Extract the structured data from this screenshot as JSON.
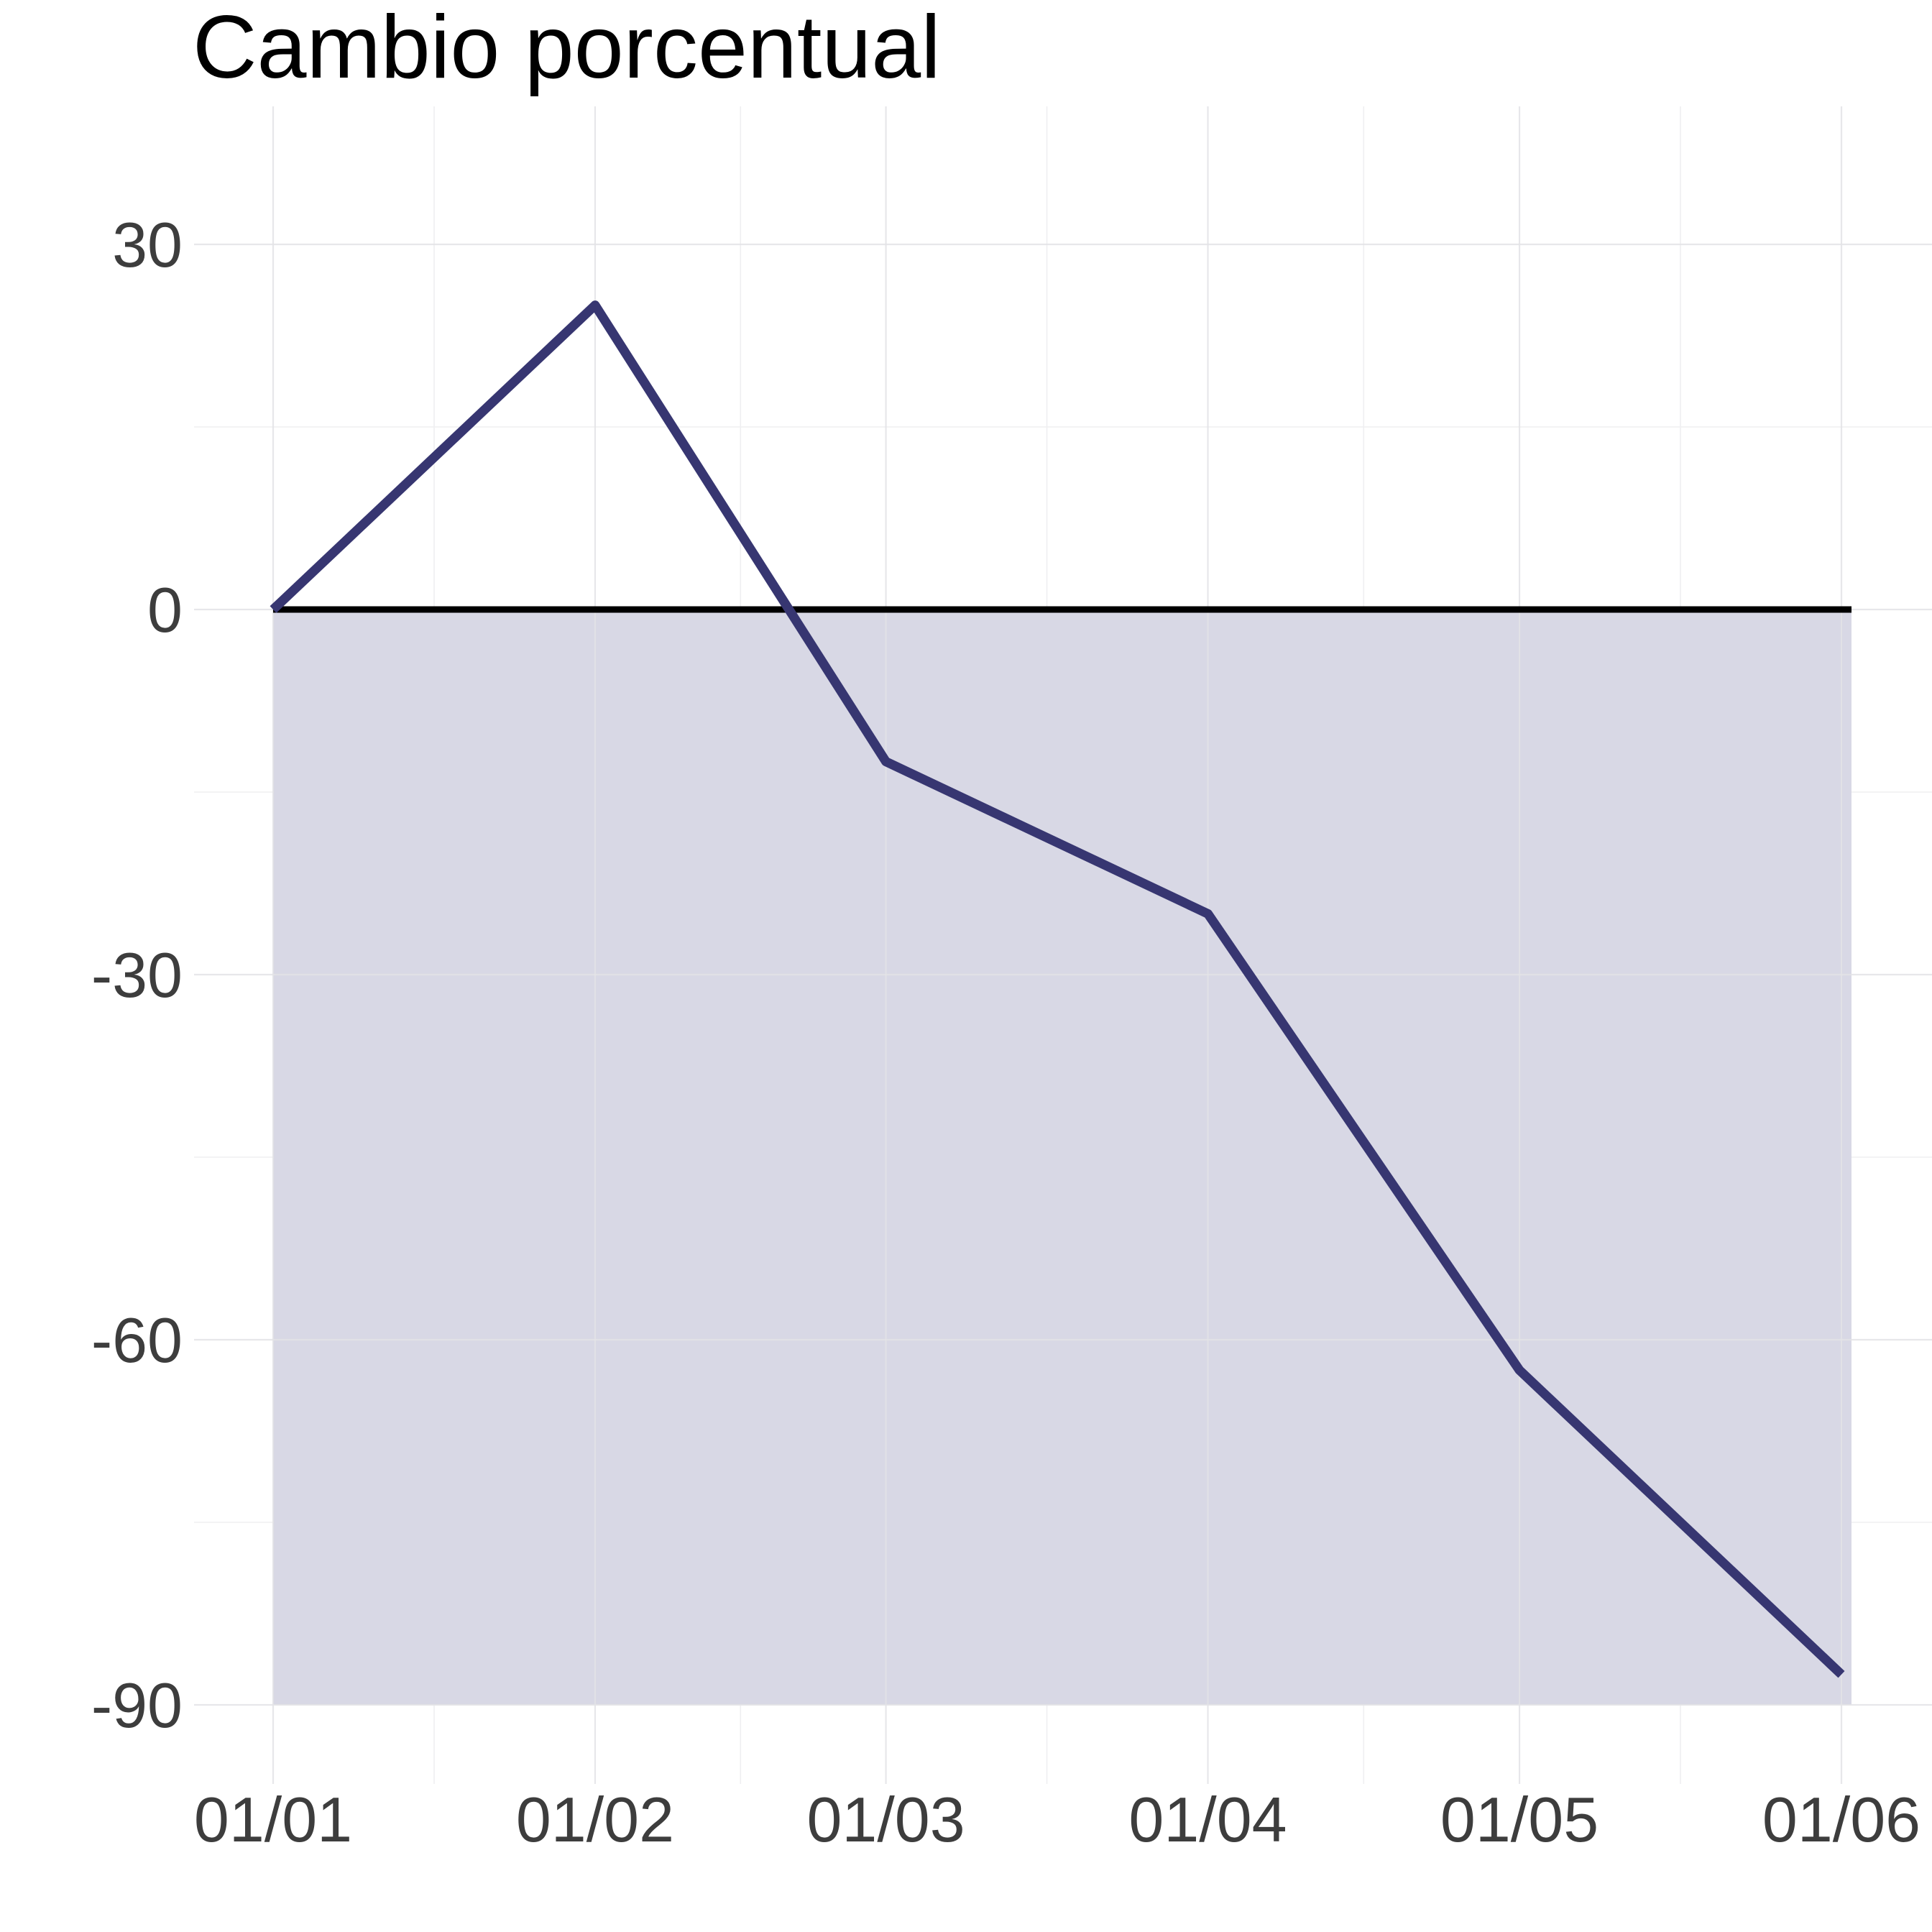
{
  "chart_data": {
    "type": "line",
    "title": "Cambio porcentual",
    "xlabel": "",
    "ylabel": "",
    "categories": [
      "01/01",
      "01/02",
      "01/03",
      "01/04",
      "01/05",
      "01/06"
    ],
    "x": [
      "2021-01-01",
      "2021-02-01",
      "2021-03-01",
      "2021-04-01",
      "2021-05-01",
      "2021-06-01"
    ],
    "series": [
      {
        "values": [
          0,
          25,
          -12.5,
          -25,
          -62.5,
          -87.5
        ]
      }
    ],
    "ylim": [
      -101,
      41
    ],
    "yticks": [
      30,
      0,
      -30,
      -60,
      -90
    ],
    "yticks_minor": [
      15,
      -15,
      -45,
      -75
    ],
    "reference_line": 0,
    "shaded_band": {
      "from": 0,
      "to": -90
    },
    "grid": true,
    "legend": "none",
    "colors": {
      "line": "#373671",
      "band": "#d8d8e5",
      "reference": "#000000",
      "grid": "#e3e3e6"
    }
  }
}
